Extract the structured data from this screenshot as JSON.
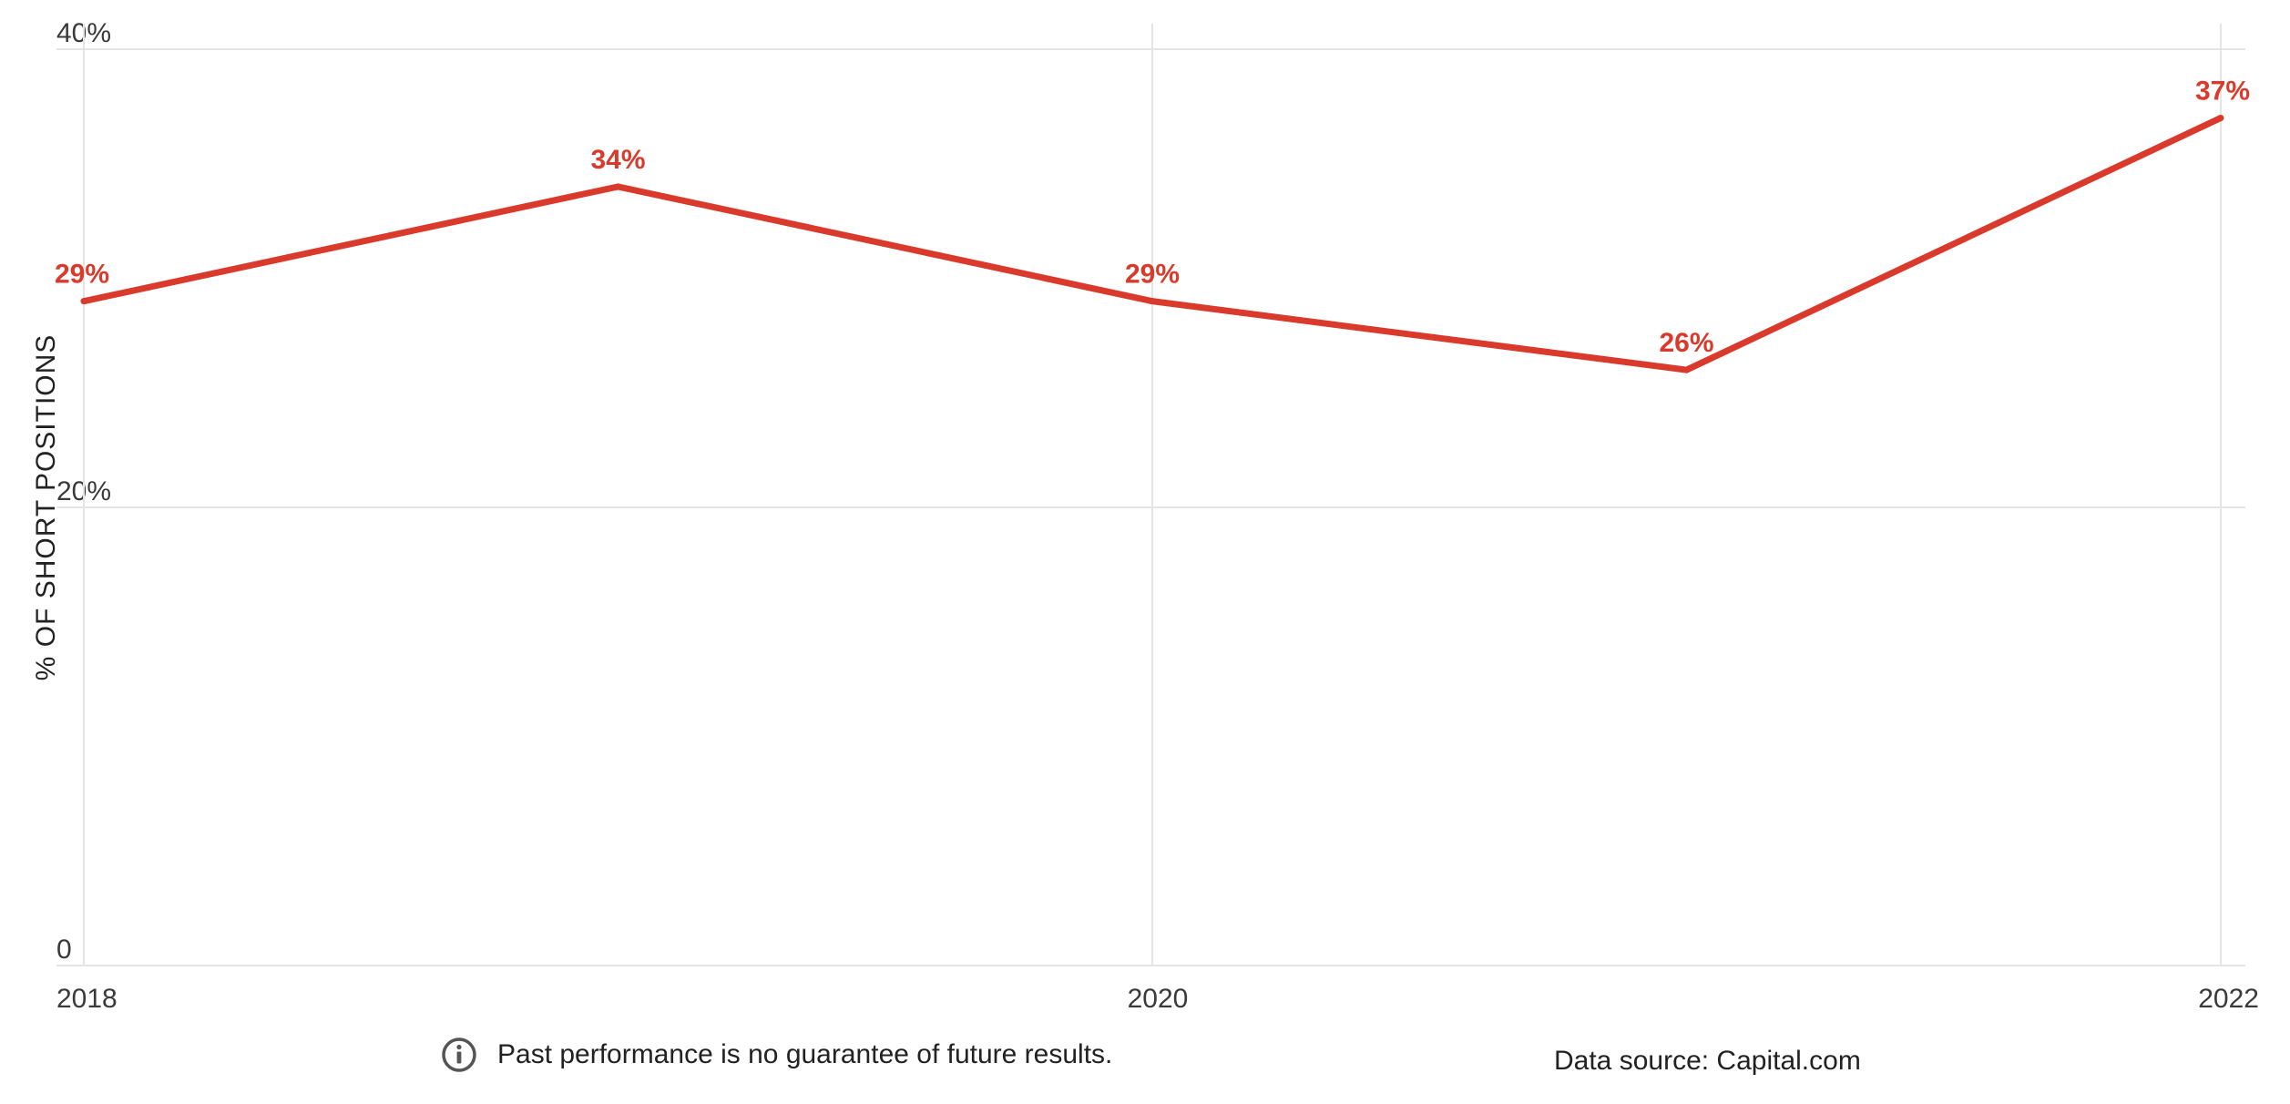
{
  "chart_data": {
    "type": "line",
    "ylabel": "% OF SHORT POSITIONS",
    "ylim": [
      0,
      40
    ],
    "yticks": [
      {
        "value": 0,
        "label": "0"
      },
      {
        "value": 20,
        "label": "20%"
      },
      {
        "value": 40,
        "label": "40%"
      }
    ],
    "xlim": [
      2018,
      2022
    ],
    "xticks": [
      {
        "value": 2018,
        "label": "2018"
      },
      {
        "value": 2020,
        "label": "2020"
      },
      {
        "value": 2022,
        "label": "2022"
      }
    ],
    "series": [
      {
        "color": "#d93a2b",
        "points": [
          {
            "x": 2018,
            "y": 29,
            "label": "29%"
          },
          {
            "x": 2019,
            "y": 34,
            "label": "34%"
          },
          {
            "x": 2020,
            "y": 29,
            "label": "29%"
          },
          {
            "x": 2021,
            "y": 26,
            "label": "26%"
          },
          {
            "x": 2022,
            "y": 37,
            "label": "37%"
          }
        ]
      }
    ],
    "grid": true
  },
  "footer": {
    "disclaimer": "Past performance is no guarantee of future results.",
    "source": "Data source: Capital.com",
    "info_icon": "info-circle-icon"
  }
}
